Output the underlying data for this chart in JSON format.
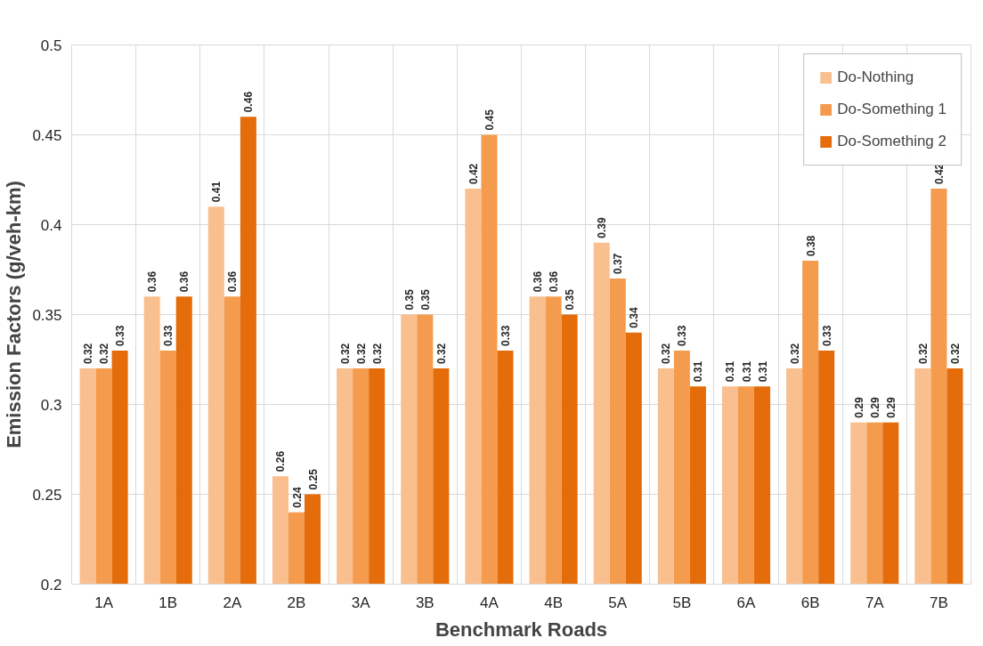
{
  "chart_data": {
    "type": "bar",
    "xlabel": "Benchmark Roads",
    "ylabel": "Emission Factors (g/veh-km)",
    "categories": [
      "1A",
      "1B",
      "2A",
      "2B",
      "3A",
      "3B",
      "4A",
      "4B",
      "5A",
      "5B",
      "6A",
      "6B",
      "7A",
      "7B"
    ],
    "series": [
      {
        "name": "Do-Nothing",
        "color": "#f9bf8f",
        "values": [
          0.32,
          0.36,
          0.41,
          0.26,
          0.32,
          0.35,
          0.42,
          0.36,
          0.39,
          0.32,
          0.31,
          0.32,
          0.29,
          0.32
        ]
      },
      {
        "name": "Do-Something 1",
        "color": "#f59b4d",
        "values": [
          0.32,
          0.33,
          0.36,
          0.24,
          0.32,
          0.35,
          0.45,
          0.36,
          0.37,
          0.33,
          0.31,
          0.38,
          0.29,
          0.42
        ]
      },
      {
        "name": "Do-Something 2",
        "color": "#e46c0a",
        "values": [
          0.33,
          0.36,
          0.46,
          0.25,
          0.32,
          0.32,
          0.33,
          0.35,
          0.34,
          0.31,
          0.31,
          0.33,
          0.29,
          0.32
        ]
      }
    ],
    "ylim": [
      0.2,
      0.5
    ],
    "yticks": [
      0.2,
      0.25,
      0.3,
      0.35,
      0.4,
      0.45,
      0.5
    ],
    "grid": true,
    "legend": "top right",
    "data_labels": true
  }
}
